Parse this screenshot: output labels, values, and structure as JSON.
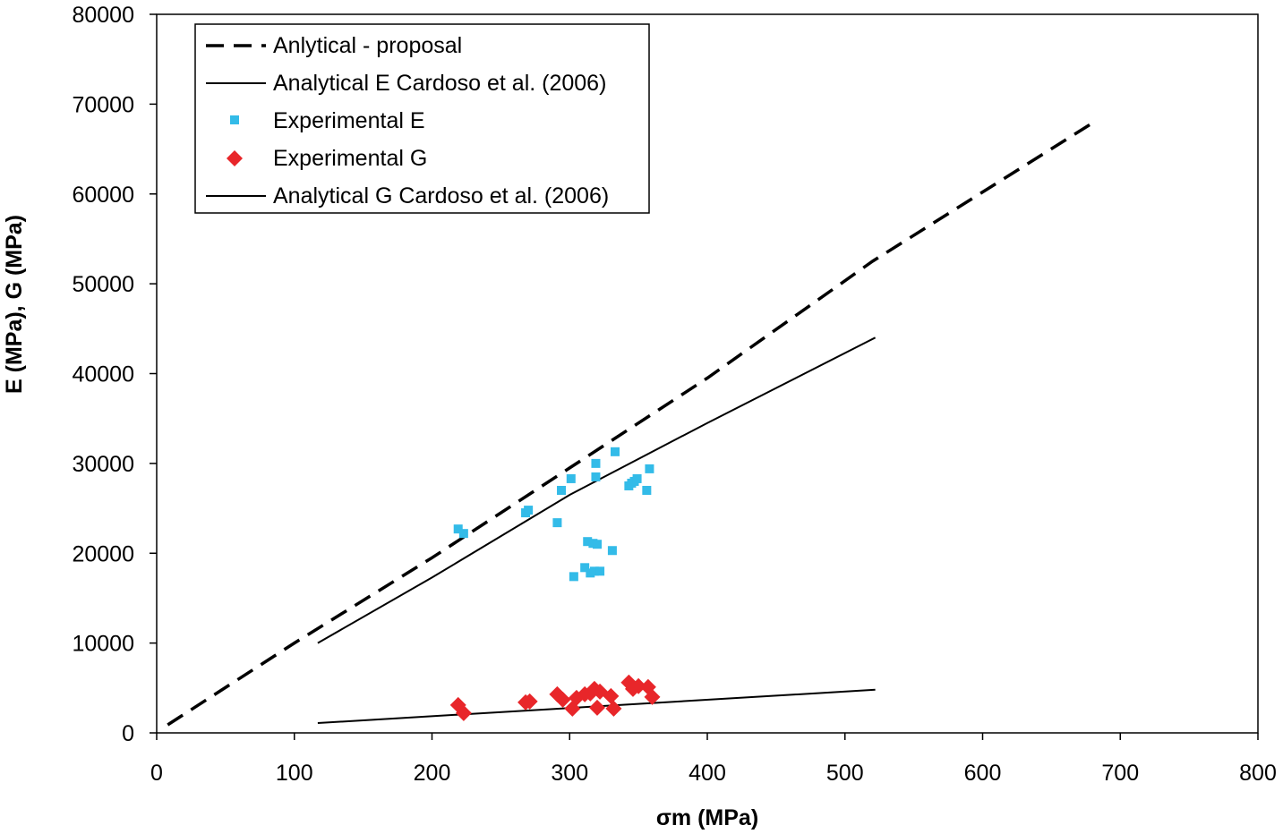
{
  "chart_data": {
    "type": "scatter",
    "title": "",
    "xlabel": "σm (MPa)",
    "ylabel": "E (MPa), G (MPa)",
    "xlim": [
      0,
      800
    ],
    "ylim": [
      0,
      80000
    ],
    "x_ticks": [
      0,
      100,
      200,
      300,
      400,
      500,
      600,
      700,
      800
    ],
    "y_ticks": [
      0,
      10000,
      20000,
      30000,
      40000,
      50000,
      60000,
      70000,
      80000
    ],
    "x_tick_labels": [
      "0",
      "100",
      "200",
      "300",
      "400",
      "500",
      "600",
      "700",
      "800"
    ],
    "y_tick_labels": [
      "0",
      "10000",
      "20000",
      "30000",
      "40000",
      "50000",
      "60000",
      "70000",
      "80000"
    ],
    "grid": false,
    "legend_position": "top-left",
    "series": [
      {
        "name": "Anlytical - proposal",
        "kind": "line",
        "style": "dashed",
        "color": "#000000",
        "points": [
          [
            8,
            900
          ],
          [
            100,
            10000
          ],
          [
            200,
            19500
          ],
          [
            300,
            29500
          ],
          [
            400,
            39500
          ],
          [
            520,
            52500
          ],
          [
            683,
            68200
          ]
        ]
      },
      {
        "name": "Analytical E Cardoso et al. (2006)",
        "kind": "line",
        "style": "solid",
        "color": "#000000",
        "points": [
          [
            117,
            10000
          ],
          [
            200,
            17300
          ],
          [
            300,
            26500
          ],
          [
            400,
            34500
          ],
          [
            522,
            44000
          ]
        ]
      },
      {
        "name": "Experimental E",
        "kind": "scatter",
        "marker": "square",
        "color": "#33BBE8",
        "points": [
          [
            219,
            22700
          ],
          [
            223,
            22200
          ],
          [
            268,
            24500
          ],
          [
            270,
            24800
          ],
          [
            291,
            23400
          ],
          [
            294,
            27000
          ],
          [
            301,
            28300
          ],
          [
            303,
            17400
          ],
          [
            311,
            18400
          ],
          [
            313,
            21300
          ],
          [
            315,
            17800
          ],
          [
            317,
            21100
          ],
          [
            318,
            18000
          ],
          [
            319,
            30000
          ],
          [
            319,
            28500
          ],
          [
            320,
            21000
          ],
          [
            322,
            18000
          ],
          [
            331,
            20300
          ],
          [
            333,
            31300
          ],
          [
            343,
            27500
          ],
          [
            345,
            27800
          ],
          [
            347,
            28000
          ],
          [
            349,
            28300
          ],
          [
            356,
            27000
          ],
          [
            358,
            29400
          ]
        ]
      },
      {
        "name": "Experimental G",
        "kind": "scatter",
        "marker": "diamond",
        "color": "#E8262A",
        "points": [
          [
            219,
            3100
          ],
          [
            223,
            2200
          ],
          [
            268,
            3400
          ],
          [
            271,
            3500
          ],
          [
            291,
            4300
          ],
          [
            295,
            3700
          ],
          [
            302,
            2700
          ],
          [
            305,
            3900
          ],
          [
            311,
            4300
          ],
          [
            315,
            4400
          ],
          [
            318,
            4900
          ],
          [
            320,
            2800
          ],
          [
            322,
            4600
          ],
          [
            330,
            4100
          ],
          [
            332,
            2700
          ],
          [
            343,
            5600
          ],
          [
            346,
            4900
          ],
          [
            350,
            5200
          ],
          [
            357,
            5100
          ],
          [
            360,
            4000
          ]
        ]
      },
      {
        "name": "Analytical G Cardoso et al. (2006)",
        "kind": "line",
        "style": "solid",
        "color": "#000000",
        "points": [
          [
            117,
            1100
          ],
          [
            522,
            4800
          ]
        ]
      }
    ]
  }
}
